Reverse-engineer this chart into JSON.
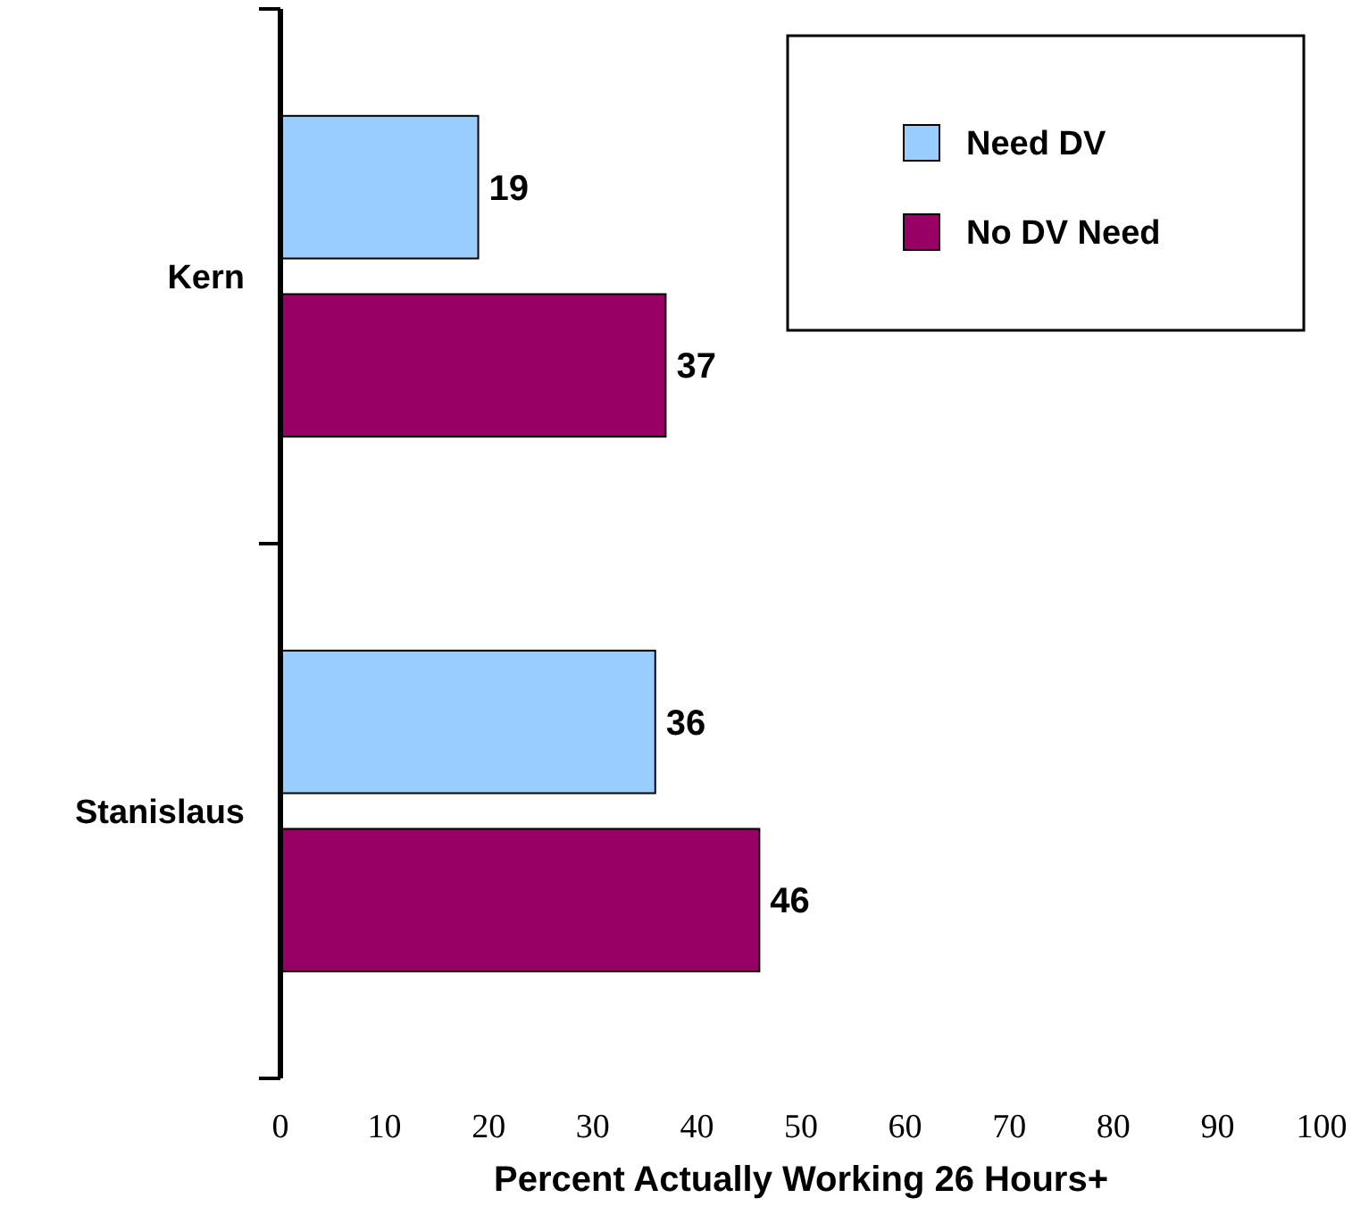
{
  "chart_data": {
    "type": "bar",
    "orientation": "horizontal",
    "xlabel": "Percent Actually Working 26 Hours+",
    "categories": [
      "Kern",
      "Stanislaus"
    ],
    "series": [
      {
        "name": "Need DV",
        "color": "#99ccff",
        "values": [
          19,
          36
        ]
      },
      {
        "name": "No DV Need",
        "color": "#990066",
        "values": [
          37,
          46
        ]
      }
    ],
    "xlim": [
      0,
      100
    ],
    "xticks": [
      0,
      10,
      20,
      30,
      40,
      50,
      60,
      70,
      80,
      90,
      100
    ],
    "data_labels": true,
    "legend": "top right",
    "grid": false
  }
}
